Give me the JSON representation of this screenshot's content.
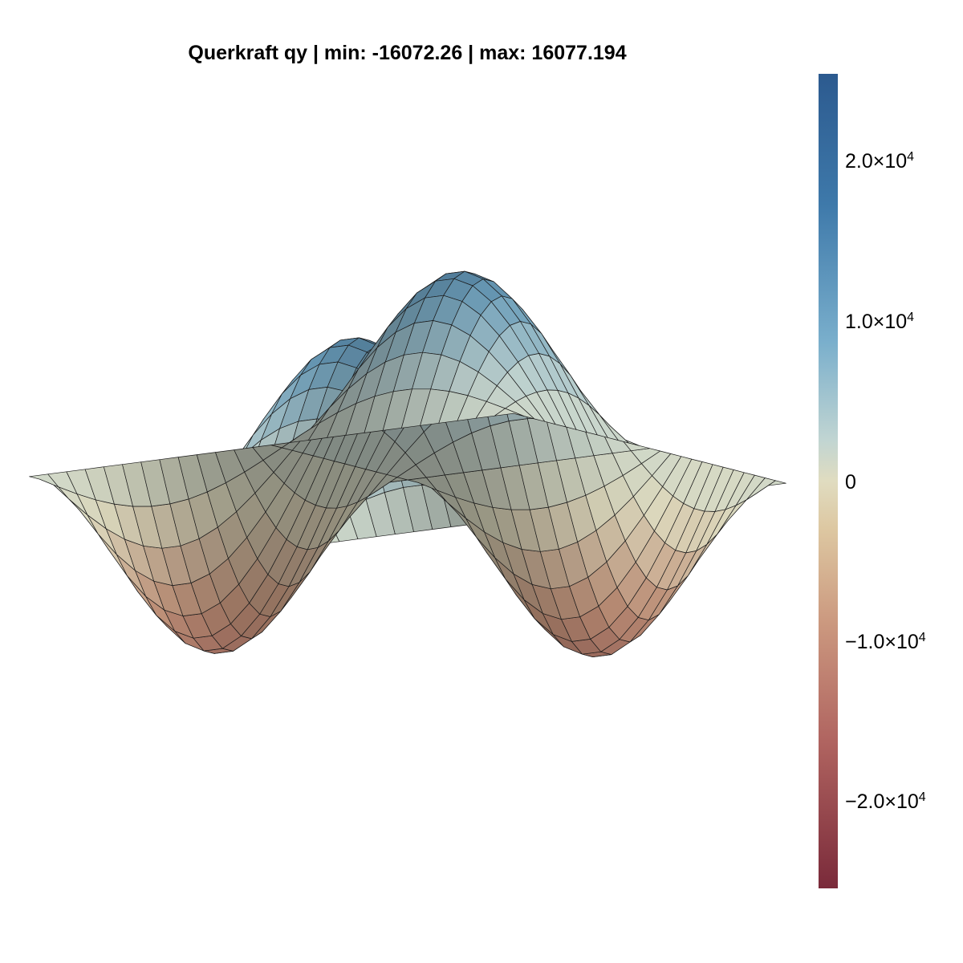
{
  "title": "Querkraft qy | min: -16072.26 | max: 16077.194",
  "colorbar": {
    "ticks": [
      {
        "value": 20000,
        "mant": "2.0×10",
        "exp": "4"
      },
      {
        "value": 10000,
        "mant": "1.0×10",
        "exp": "4"
      },
      {
        "value": 0,
        "mant": "0",
        "exp": ""
      },
      {
        "value": -10000,
        "mant": "−1.0×10",
        "exp": "4"
      },
      {
        "value": -20000,
        "mant": "−2.0×10",
        "exp": "4"
      }
    ],
    "range": [
      -25000,
      25000
    ],
    "colors": [
      "#7a2a3a",
      "#b06460",
      "#cc9a80",
      "#e0dcc0",
      "#c1d5d2",
      "#7aafcc",
      "#3e79aa",
      "#2c5a8f"
    ]
  },
  "chart_data": {
    "type": "surface",
    "title": "Querkraft qy | min: -16072.26 | max: 16077.194",
    "min": -16072.26,
    "max": 16077.194,
    "colorbar_range": [
      -25000,
      25000
    ],
    "grid": false
  }
}
